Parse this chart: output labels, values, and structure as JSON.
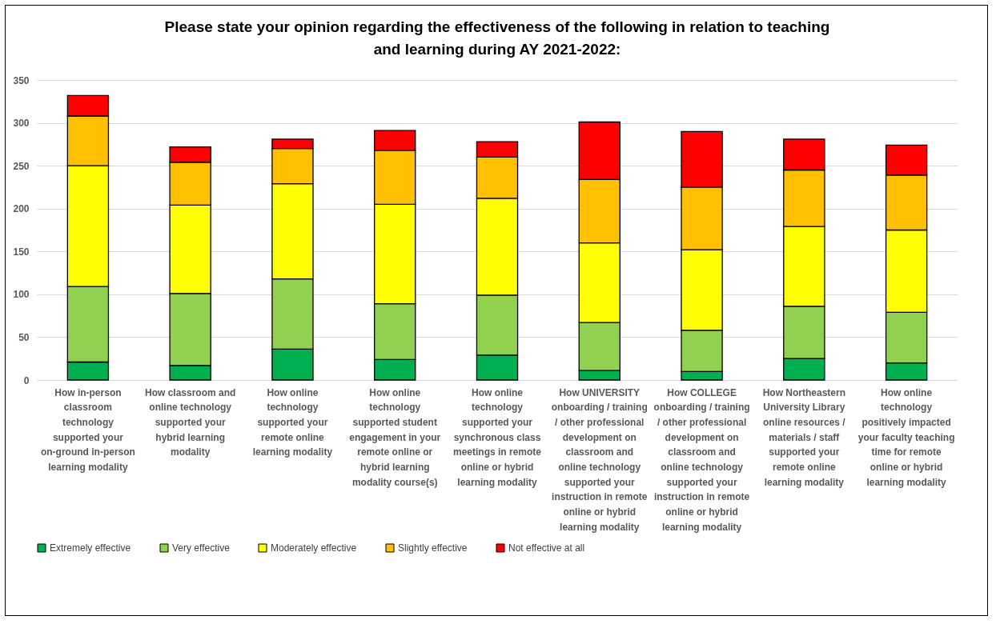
{
  "chart_data": {
    "type": "bar",
    "stacked": true,
    "title": "Please state your opinion regarding the effectiveness of the following in relation to teaching and learning during AY 2021-2022:",
    "categories": [
      "How in-person classroom technology supported your on-ground in-person learning modality",
      "How classroom and online technology supported your hybrid learning modality",
      "How online technology supported your remote online learning modality",
      "How online technology supported student engagement in your remote online or hybrid learning modality course(s)",
      "How online technology supported your synchronous class meetings in remote online or hybrid learning modality",
      "How UNIVERSITY onboarding / training / other professional development on classroom and online technology supported your instruction in remote online or hybrid learning modality",
      "How COLLEGE onboarding / training / other professional development on classroom and online technology supported your instruction in remote online or hybrid learning modality",
      "How Northeastern University Library online resources / materials / staff supported your remote online learning modality",
      "How online technology positively impacted your faculty teaching time for remote online or hybrid learning modality"
    ],
    "series": [
      {
        "name": "Extremely effective",
        "color": "#00b050",
        "values": [
          21,
          17,
          36,
          24,
          29,
          11,
          10,
          25,
          20
        ]
      },
      {
        "name": "Very effective",
        "color": "#92d050",
        "values": [
          88,
          84,
          82,
          65,
          70,
          56,
          48,
          61,
          59
        ]
      },
      {
        "name": "Moderately effective",
        "color": "#ffff00",
        "values": [
          141,
          103,
          111,
          116,
          113,
          93,
          94,
          93,
          96
        ]
      },
      {
        "name": "Slightly effective",
        "color": "#ffc000",
        "values": [
          58,
          50,
          41,
          63,
          48,
          74,
          73,
          66,
          64
        ]
      },
      {
        "name": "Not effective at all",
        "color": "#ff0000",
        "values": [
          24,
          18,
          11,
          23,
          18,
          67,
          65,
          36,
          35
        ]
      }
    ],
    "ylim": [
      0,
      350
    ],
    "yticks": [
      0,
      50,
      100,
      150,
      200,
      250,
      300,
      350
    ],
    "grid": "y",
    "legend": "bottom"
  }
}
